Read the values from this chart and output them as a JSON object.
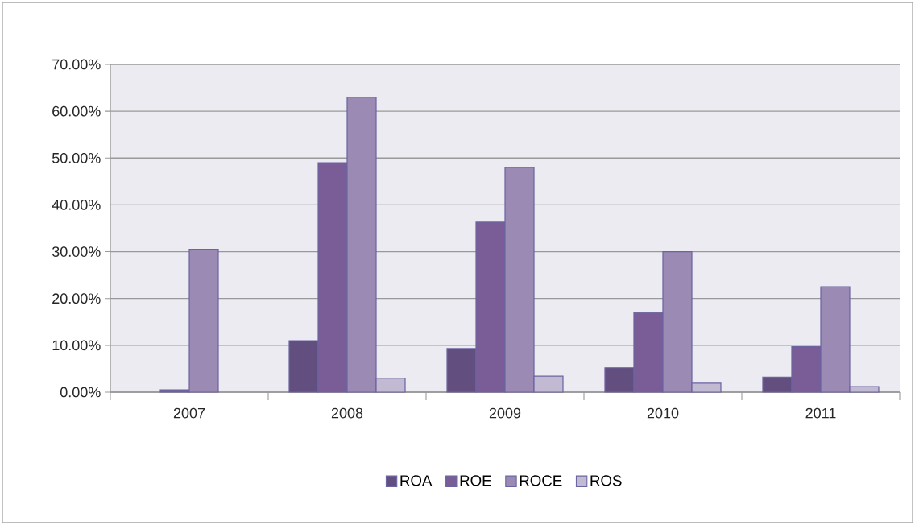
{
  "chart_data": {
    "type": "bar",
    "categories": [
      "2007",
      "2008",
      "2009",
      "2010",
      "2011"
    ],
    "series": [
      {
        "name": "ROA",
        "color": "#624e7f",
        "values": [
          null,
          11,
          9.3,
          5.2,
          3.2
        ]
      },
      {
        "name": "ROE",
        "color": "#7a5c96",
        "values": [
          0.5,
          49,
          36.3,
          17,
          9.7
        ]
      },
      {
        "name": "ROCE",
        "color": "#9a8ab4",
        "values": [
          30.5,
          63,
          48,
          30,
          22.5
        ]
      },
      {
        "name": "ROS",
        "color": "#c2b9d3",
        "values": [
          null,
          3,
          3.4,
          1.9,
          1.2
        ]
      }
    ],
    "ylim": [
      0,
      70
    ],
    "yticks": [
      {
        "value": 0,
        "label": "0.00%"
      },
      {
        "value": 10,
        "label": "10.00%"
      },
      {
        "value": 20,
        "label": "20.00%"
      },
      {
        "value": 30,
        "label": "30.00%"
      },
      {
        "value": 40,
        "label": "40.00%"
      },
      {
        "value": 50,
        "label": "50.00%"
      },
      {
        "value": 60,
        "label": "60.00%"
      },
      {
        "value": 70,
        "label": "70.00%"
      }
    ],
    "grid": "y",
    "legend": "bottom"
  }
}
